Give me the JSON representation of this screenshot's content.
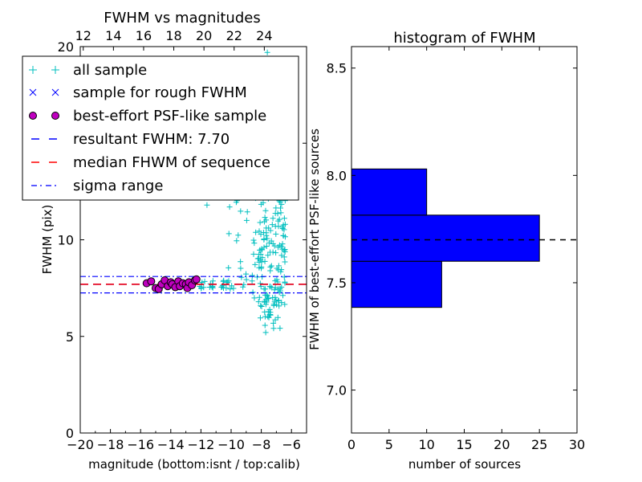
{
  "chart_data": [
    {
      "type": "scatter",
      "title": "FWHM vs magnitudes",
      "xlabel": "magnitude (bottom:isnt / top:calib)",
      "ylabel": "FWHM (pix)",
      "xlim": [
        -20,
        -5
      ],
      "ylim": [
        0,
        20
      ],
      "x_ticks": [
        -20,
        -18,
        -16,
        -14,
        -12,
        -10,
        -8,
        -6
      ],
      "x_tick_labels": [
        "−20",
        "−18",
        "−16",
        "−14",
        "−12",
        "−10",
        "−8",
        "−6"
      ],
      "y_ticks": [
        0,
        5,
        10,
        15,
        20
      ],
      "y_tick_labels": [
        "0",
        "5",
        "10",
        "15",
        "20"
      ],
      "top_ticks": [
        12,
        14,
        16,
        18,
        20,
        22,
        24
      ],
      "top_tick_labels": [
        "12",
        "14",
        "16",
        "18",
        "20",
        "22",
        "24"
      ],
      "top_axis_offset": 31.8,
      "series": [
        {
          "name": "all sample",
          "marker": "+",
          "color": "#00bfbf"
        },
        {
          "name": "sample for rough FWHM",
          "marker": "x",
          "color": "#0000ff"
        },
        {
          "name": "best-effort PSF-like sample",
          "marker": "o",
          "color": "#bf00bf",
          "x": [
            -15.6,
            -15.3,
            -15.0,
            -14.8,
            -14.6,
            -14.4,
            -14.2,
            -14.0,
            -13.9,
            -13.7,
            -13.5,
            -13.4,
            -13.2,
            -13.0,
            -12.9,
            -12.8,
            -12.6,
            -12.4,
            -12.3
          ],
          "y": [
            7.75,
            7.85,
            7.5,
            7.45,
            7.7,
            7.9,
            7.6,
            7.8,
            7.7,
            7.55,
            7.85,
            7.6,
            7.75,
            7.7,
            7.5,
            7.8,
            7.65,
            7.9,
            7.95
          ]
        },
        {
          "name": "resultant FWHM: 7.70",
          "style": "dashed",
          "color": "#0000ff",
          "y": 7.7
        },
        {
          "name": "median FHWM of sequence",
          "style": "dashed",
          "color": "#ff0000",
          "y": 7.7
        },
        {
          "name": "sigma range",
          "style": "dashdot",
          "color": "#0000ff",
          "y": [
            7.25,
            8.1
          ]
        }
      ],
      "legend_position": "upper-left"
    },
    {
      "type": "bar",
      "orientation": "horizontal",
      "title": "histogram of FWHM",
      "xlabel": "number of sources",
      "ylabel": "FWHM of best-effort PSF-like sources",
      "xlim": [
        0,
        30
      ],
      "ylim": [
        6.8,
        8.6
      ],
      "x_ticks": [
        0,
        5,
        10,
        15,
        20,
        25,
        30
      ],
      "x_tick_labels": [
        "0",
        "5",
        "10",
        "15",
        "20",
        "25",
        "30"
      ],
      "y_ticks": [
        7.0,
        7.5,
        8.0,
        8.5
      ],
      "y_tick_labels": [
        "7.0",
        "7.5",
        "8.0",
        "8.5"
      ],
      "bins": [
        {
          "low": 7.385,
          "high": 7.6,
          "count": 12
        },
        {
          "low": 7.6,
          "high": 7.815,
          "count": 25
        },
        {
          "low": 7.815,
          "high": 8.03,
          "count": 10
        }
      ],
      "bar_color": "#0000ff",
      "reference_line_y": 7.7
    }
  ]
}
